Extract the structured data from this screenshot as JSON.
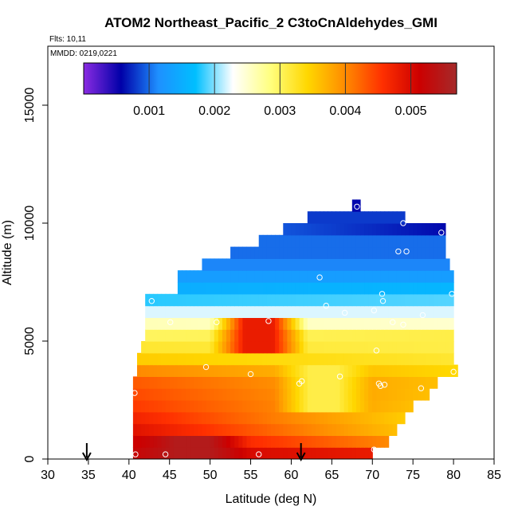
{
  "chart_data": {
    "type": "heatmap",
    "title": "ATOM2 Northeast_Pacific_2 C3toCnAldehydes_GMI",
    "notes": [
      "Flts: 10,11",
      "MMDD: 0219,0221"
    ],
    "xlabel": "Latitude (deg N)",
    "ylabel": "Altitude (m)",
    "xlim": [
      30,
      85
    ],
    "ylim": [
      0,
      17500
    ],
    "x_ticks": [
      30,
      35,
      40,
      45,
      50,
      55,
      60,
      65,
      70,
      75,
      80,
      85
    ],
    "y_ticks": [
      0,
      5000,
      10000,
      15000
    ],
    "colorbar": {
      "range": [
        0,
        0.0057
      ],
      "ticks": [
        0.001,
        0.002,
        0.003,
        0.004,
        0.005
      ],
      "tick_labels": [
        "0.001",
        "0.002",
        "0.003",
        "0.004",
        "0.005"
      ],
      "colors": [
        "#8a2be2",
        "#0000a8",
        "#1e90ff",
        "#00bfff",
        "#ffffff",
        "#ffff80",
        "#ffd700",
        "#ff8c00",
        "#ff3000",
        "#cc0000",
        "#a52a2a"
      ]
    },
    "altitude_bins": [
      {
        "alt": [
          0,
          500
        ],
        "lat": [
          40.5,
          70
        ],
        "v0": 0.0052,
        "v1": 0.0048
      },
      {
        "alt": [
          500,
          1000
        ],
        "lat": [
          40.5,
          72
        ],
        "v0": 0.0051,
        "v1": 0.004
      },
      {
        "alt": [
          1000,
          1500
        ],
        "lat": [
          40.5,
          73
        ],
        "v0": 0.0049,
        "v1": 0.0036
      },
      {
        "alt": [
          1500,
          2000
        ],
        "lat": [
          40.5,
          74
        ],
        "v0": 0.0047,
        "v1": 0.0035
      },
      {
        "alt": [
          2000,
          2500
        ],
        "lat": [
          40.5,
          75
        ],
        "v0": 0.0045,
        "v1": 0.0036
      },
      {
        "alt": [
          2500,
          3000
        ],
        "lat": [
          40.5,
          77
        ],
        "v0": 0.0044,
        "v1": 0.0036
      },
      {
        "alt": [
          3000,
          3500
        ],
        "lat": [
          40.5,
          78
        ],
        "v0": 0.0043,
        "v1": 0.0036
      },
      {
        "alt": [
          3500,
          4000
        ],
        "lat": [
          41,
          80.5
        ],
        "v0": 0.004,
        "v1": 0.0034
      },
      {
        "alt": [
          4000,
          4500
        ],
        "lat": [
          41,
          80
        ],
        "v0": 0.0035,
        "v1": 0.0032
      },
      {
        "alt": [
          4500,
          5000
        ],
        "lat": [
          41.5,
          80
        ],
        "v0": 0.0032,
        "v1": 0.0031
      },
      {
        "alt": [
          5000,
          5500
        ],
        "lat": [
          42,
          80
        ],
        "v0": 0.003,
        "v1": 0.0031
      },
      {
        "alt": [
          5500,
          6000
        ],
        "lat": [
          42,
          80
        ],
        "v0": 0.0026,
        "v1": 0.0025
      },
      {
        "alt": [
          6000,
          6500
        ],
        "lat": [
          42,
          80
        ],
        "v0": 0.0022,
        "v1": 0.0022
      },
      {
        "alt": [
          6500,
          7000
        ],
        "lat": [
          42,
          80
        ],
        "v0": 0.0018,
        "v1": 0.0019
      },
      {
        "alt": [
          7000,
          7500
        ],
        "lat": [
          46,
          80
        ],
        "v0": 0.0015,
        "v1": 0.0016
      },
      {
        "alt": [
          7500,
          8000
        ],
        "lat": [
          46,
          80
        ],
        "v0": 0.0013,
        "v1": 0.0013
      },
      {
        "alt": [
          8000,
          8500
        ],
        "lat": [
          49,
          79.5
        ],
        "v0": 0.0011,
        "v1": 0.0011
      },
      {
        "alt": [
          8500,
          9000
        ],
        "lat": [
          52.5,
          79
        ],
        "v0": 0.001,
        "v1": 0.001
      },
      {
        "alt": [
          9000,
          9500
        ],
        "lat": [
          56,
          79
        ],
        "v0": 0.001,
        "v1": 0.001
      },
      {
        "alt": [
          9500,
          10000
        ],
        "lat": [
          59,
          79
        ],
        "v0": 0.0009,
        "v1": 0.0006
      },
      {
        "alt": [
          10000,
          10500
        ],
        "lat": [
          62,
          74
        ],
        "v0": 0.0008,
        "v1": 0.0008
      },
      {
        "alt": [
          10500,
          11000
        ],
        "lat": [
          67.5,
          68.5
        ],
        "v0": 0.0006,
        "v1": 0.0006
      }
    ],
    "warm_patch": {
      "lat": [
        50,
        62
      ],
      "alt": [
        4500,
        6000
      ],
      "value": 0.0048
    },
    "cool_patch": {
      "lat": [
        58,
        70
      ],
      "alt": [
        2000,
        4000
      ],
      "value": 0.0031
    },
    "hot_patch": {
      "lat": [
        40.5,
        55
      ],
      "alt": [
        0,
        1000
      ],
      "value": 0.0055
    },
    "points": [
      [
        40.8,
        200
      ],
      [
        44.5,
        200
      ],
      [
        56,
        200
      ],
      [
        70.2,
        400
      ],
      [
        40.7,
        2800
      ],
      [
        49.5,
        3900
      ],
      [
        55,
        3600
      ],
      [
        61.3,
        3300
      ],
      [
        61,
        3200
      ],
      [
        66,
        3500
      ],
      [
        70.8,
        3200
      ],
      [
        71,
        3100
      ],
      [
        71.5,
        3150
      ],
      [
        76,
        3000
      ],
      [
        80,
        3700
      ],
      [
        70.5,
        4600
      ],
      [
        45.1,
        5800
      ],
      [
        50.8,
        5800
      ],
      [
        57.2,
        5850
      ],
      [
        72.5,
        5800
      ],
      [
        73.8,
        5700
      ],
      [
        64.3,
        6500
      ],
      [
        66.6,
        6200
      ],
      [
        70.2,
        6300
      ],
      [
        76.2,
        6100
      ],
      [
        42.8,
        6700
      ],
      [
        71.2,
        7000
      ],
      [
        71.3,
        6700
      ],
      [
        79.8,
        7000
      ],
      [
        63.5,
        7700
      ],
      [
        73.2,
        8800
      ],
      [
        74.2,
        8800
      ],
      [
        78.5,
        9600
      ],
      [
        73.8,
        10000
      ],
      [
        68.1,
        10700
      ]
    ],
    "arrows": [
      34.8,
      61.2
    ]
  }
}
